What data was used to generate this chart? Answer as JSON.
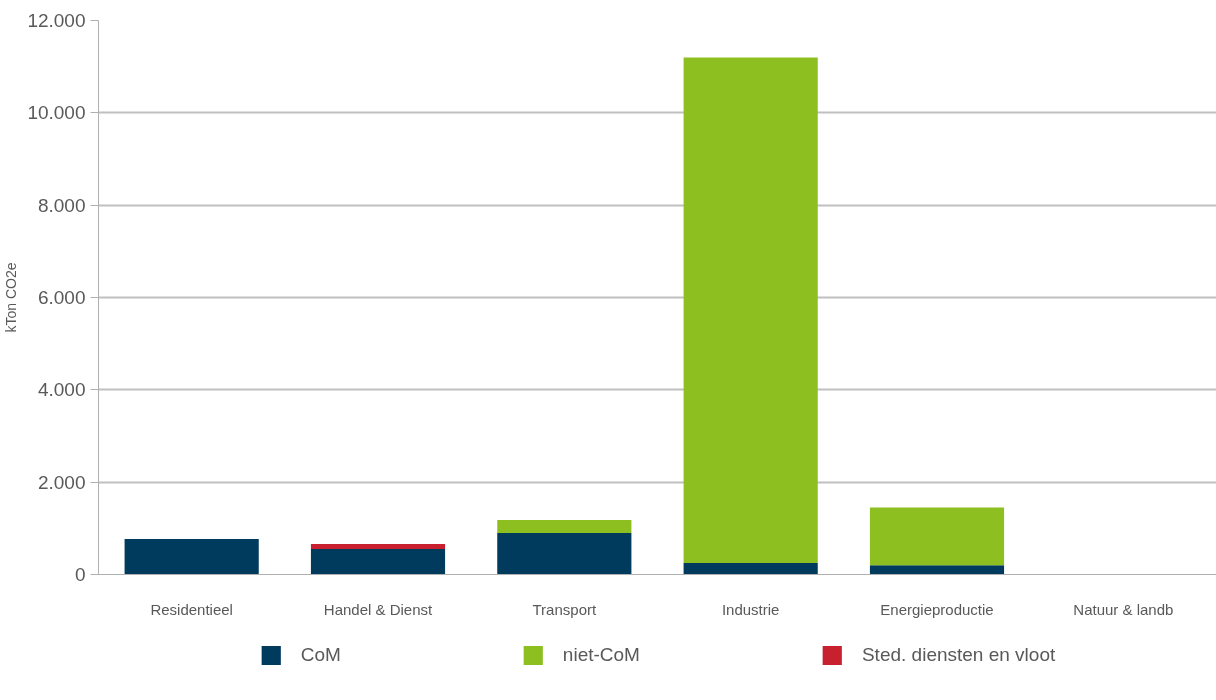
{
  "chart_data": {
    "type": "bar",
    "stacked": true,
    "ylabel": "kTon CO2e",
    "categories": [
      "Residentieel",
      "Handel & Dienst",
      "Transport",
      "Industrie",
      "Energieproductie",
      "Natuur & landb"
    ],
    "series": [
      {
        "name": "CoM",
        "color": "#003a5d",
        "values": [
          770,
          550,
          900,
          250,
          200,
          0
        ]
      },
      {
        "name": "niet-CoM",
        "color": "#8dbf21",
        "values": [
          0,
          0,
          280,
          10950,
          1250,
          0
        ]
      },
      {
        "name": "Sted. diensten en vloot",
        "color": "#c8202f",
        "values": [
          0,
          110,
          0,
          0,
          0,
          0
        ]
      }
    ],
    "ylim": [
      0,
      12000
    ],
    "yticks": [
      0,
      {
        "value": 2000,
        "label": "2.000"
      },
      {
        "value": 4000,
        "label": "4.000"
      },
      {
        "value": 6000,
        "label": "6.000"
      },
      {
        "value": 8000,
        "label": "8.000"
      },
      {
        "value": 10000,
        "label": "10.000"
      },
      {
        "value": 12000,
        "label": "12.000"
      }
    ],
    "grid": "y",
    "legend": "bottom"
  }
}
